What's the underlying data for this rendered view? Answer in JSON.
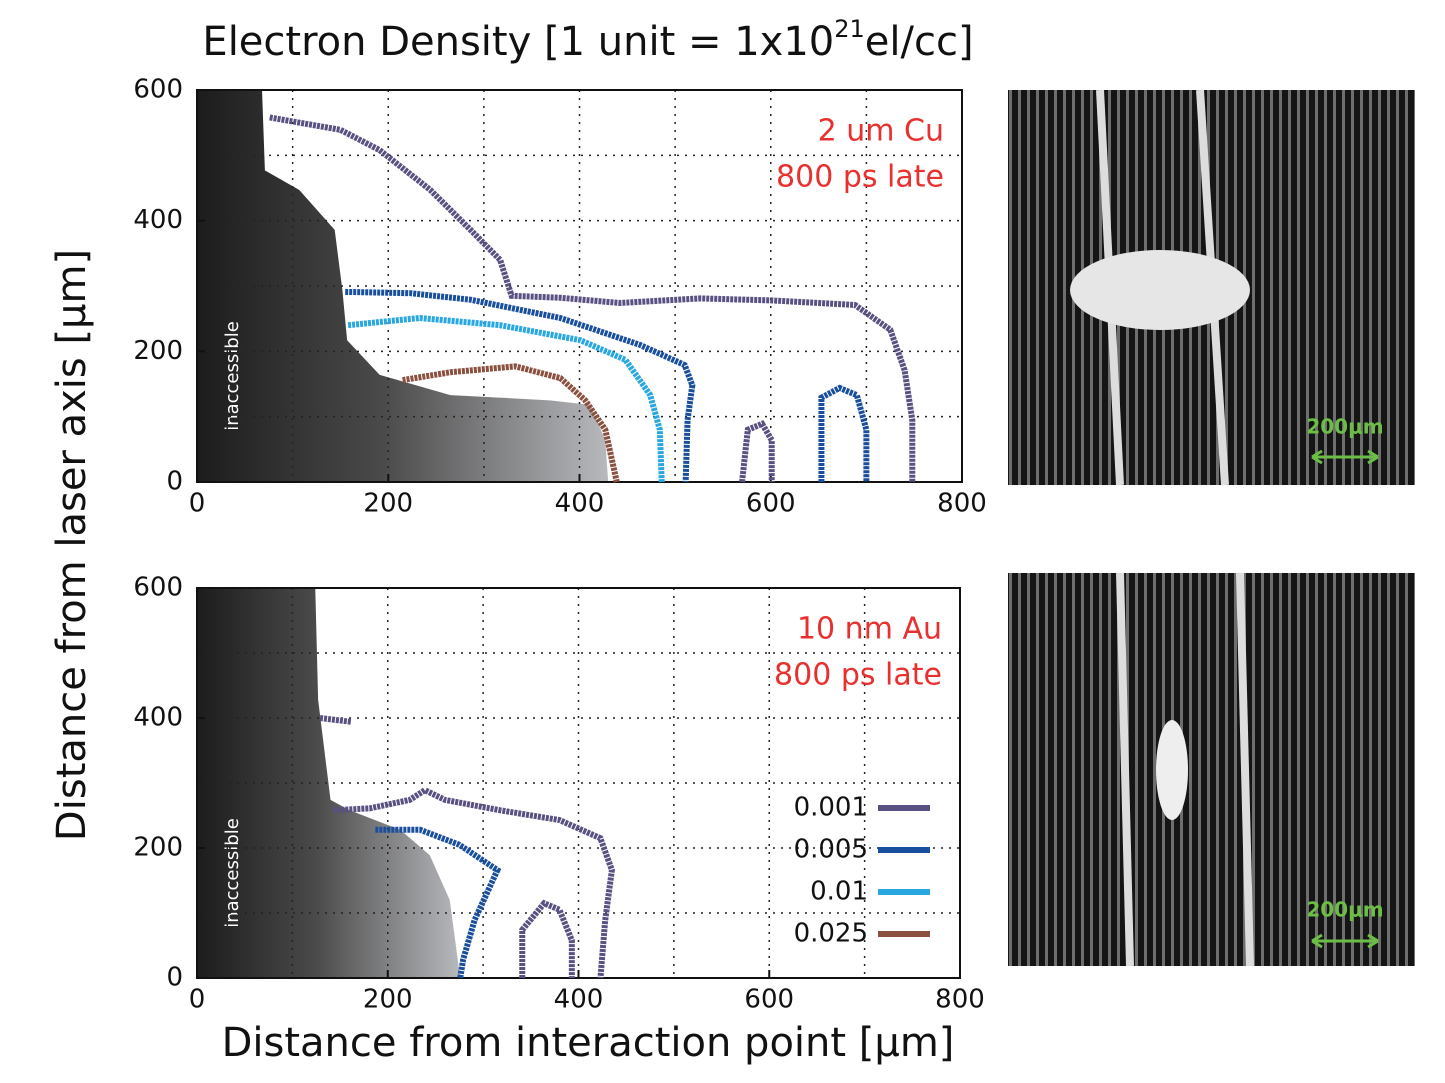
{
  "title": [
    "Electron Density [1 unit = 1x10",
    "21",
    "el/cc]"
  ],
  "y_label": "Distance from laser axis [μm]",
  "x_label": "Distance from interaction point [μm]",
  "images": [
    {
      "scale_label": "200μm"
    },
    {
      "scale_label": "200μm"
    }
  ],
  "chart_data": [
    {
      "type": "line",
      "annotations": [
        "2 um Cu",
        "800 ps late"
      ],
      "region_label": "inaccessible",
      "region": {
        "x": [
          68,
          71,
          107,
          144,
          152,
          157,
          191,
          265,
          369,
          411,
          427,
          430
        ],
        "y": [
          600,
          477,
          447,
          386,
          294,
          217,
          164,
          133,
          125,
          118,
          64,
          0
        ]
      },
      "xlim": [
        0,
        800
      ],
      "ylim": [
        0,
        600
      ],
      "xticks": [
        0,
        200,
        400,
        600,
        800
      ],
      "yticks": [
        0,
        200,
        400,
        600
      ],
      "x_minor_grid": [
        100,
        300,
        500,
        700
      ],
      "y_minor_grid": [
        100,
        300,
        500
      ],
      "grid": true,
      "series": [
        {
          "color": "#5a5082",
          "x": [
            76,
            150,
            191,
            244,
            286,
            317,
            329,
            380,
            442,
            526,
            600,
            688,
            725,
            740,
            748,
            748,
            null,
            570,
            576,
            591,
            601,
            601
          ],
          "values": [
            558,
            539,
            508,
            447,
            386,
            340,
            285,
            282,
            274,
            281,
            278,
            271,
            233,
            171,
            95,
            0,
            null,
            0,
            80,
            89,
            64,
            0
          ]
        },
        {
          "color": "#1a4f9e",
          "x": [
            155,
            223,
            286,
            380,
            463,
            510,
            518,
            513,
            511,
            null,
            653,
            653,
            672,
            690,
            700,
            700
          ],
          "values": [
            291,
            289,
            279,
            251,
            210,
            179,
            148,
            95,
            0,
            null,
            0,
            129,
            144,
            133,
            80,
            0
          ]
        },
        {
          "color": "#29a8e0",
          "x": [
            158,
            233,
            317,
            401,
            448,
            474,
            484,
            486
          ],
          "values": [
            240,
            251,
            240,
            217,
            187,
            133,
            80,
            0
          ]
        },
        {
          "color": "#8b5040",
          "x": [
            215,
            265,
            333,
            380,
            406,
            427,
            439
          ],
          "values": [
            156,
            168,
            177,
            159,
            125,
            80,
            0
          ]
        }
      ]
    },
    {
      "type": "line",
      "annotations": [
        "10 nm Au",
        "800 ps late"
      ],
      "region_label": "inaccessible",
      "region": {
        "x": [
          124,
          127,
          140,
          160,
          213,
          244,
          265,
          276
        ],
        "y": [
          600,
          428,
          274,
          258,
          228,
          189,
          120,
          0
        ]
      },
      "xlim": [
        0,
        800
      ],
      "ylim": [
        0,
        600
      ],
      "xticks": [
        0,
        200,
        400,
        600,
        800
      ],
      "yticks": [
        0,
        200,
        400,
        600
      ],
      "x_minor_grid": [
        100,
        300,
        500,
        700
      ],
      "y_minor_grid": [
        100,
        300,
        500
      ],
      "grid": true,
      "legend": "lower right",
      "series": [
        {
          "name": "0.001",
          "color": "#5a5082",
          "x": [
            129,
            162,
            null,
            143,
            181,
            223,
            239,
            260,
            318,
            380,
            423,
            435,
            428,
            423,
            null,
            341,
            341,
            364,
            380,
            393,
            393
          ],
          "values": [
            400,
            394,
            null,
            258,
            261,
            274,
            289,
            274,
            258,
            243,
            215,
            166,
            89,
            0,
            null,
            0,
            74,
            115,
            105,
            58,
            0
          ]
        },
        {
          "name": "0.005",
          "color": "#1a4f9e",
          "x": [
            187,
            234,
            275,
            315,
            291,
            279,
            276
          ],
          "values": [
            228,
            228,
            205,
            166,
            89,
            28,
            0
          ]
        },
        {
          "name": "0.01",
          "color": "#29a8e0",
          "x": [],
          "values": []
        },
        {
          "name": "0.025",
          "color": "#8b5040",
          "x": [],
          "values": []
        }
      ]
    }
  ]
}
